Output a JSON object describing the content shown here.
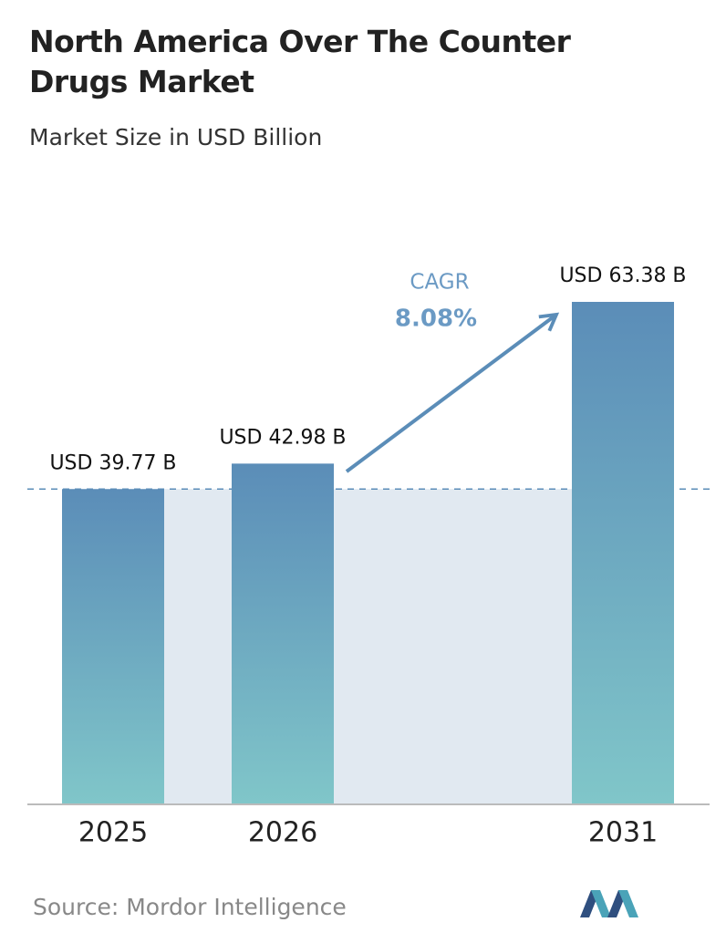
{
  "chart_data": {
    "type": "bar",
    "title": "North America Over The Counter Drugs Market",
    "subtitle": "Market Size in USD Billion",
    "categories": [
      "2025",
      "2026",
      "2031"
    ],
    "values": [
      39.77,
      42.98,
      63.38
    ],
    "value_labels": [
      "USD 39.77 B",
      "USD 42.98 B",
      "USD 63.38 B"
    ],
    "annotation": {
      "label": "CAGR",
      "value": "8.08%"
    },
    "source": "Source:  Mordor Intelligence"
  }
}
